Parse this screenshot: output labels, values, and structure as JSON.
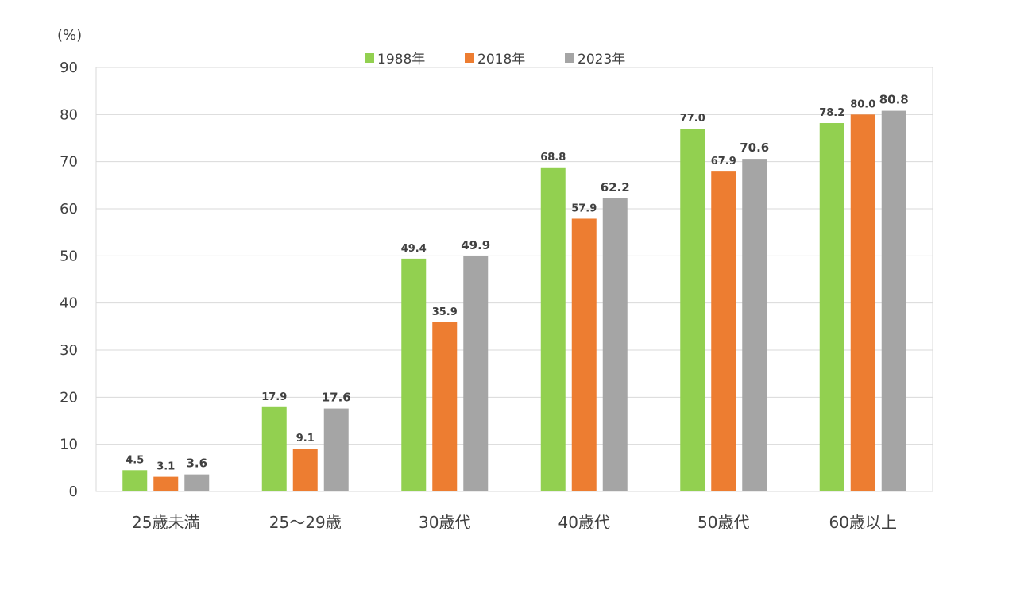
{
  "chart_data": {
    "type": "bar",
    "title": "",
    "xlabel": "",
    "ylabel": "(%)",
    "ylim": [
      0,
      90
    ],
    "yticks": [
      "0",
      "10",
      "20",
      "30",
      "40",
      "50",
      "60",
      "70",
      "80",
      "90"
    ],
    "grid": true,
    "legend_position": "top",
    "categories": [
      "25歳未満",
      "25～29歳",
      "30歳代",
      "40歳代",
      "50歳代",
      "60歳以上"
    ],
    "series": [
      {
        "name": "1988年",
        "color": "#92d050",
        "values": [
          4.5,
          17.9,
          49.4,
          68.8,
          77.0,
          78.2
        ],
        "labels": [
          "4.5",
          "17.9",
          "49.4",
          "68.8",
          "77.0",
          "78.2"
        ]
      },
      {
        "name": "2018年",
        "color": "#ed7d31",
        "values": [
          3.1,
          9.1,
          35.9,
          57.9,
          67.9,
          80.0
        ],
        "labels": [
          "3.1",
          "9.1",
          "35.9",
          "57.9",
          "67.9",
          "80.0"
        ]
      },
      {
        "name": "2023年",
        "color": "#a5a5a5",
        "values": [
          3.6,
          17.6,
          49.9,
          62.2,
          70.6,
          80.8
        ],
        "labels": [
          "3.6",
          "17.6",
          "49.9",
          "62.2",
          "70.6",
          "80.8"
        ]
      }
    ]
  }
}
